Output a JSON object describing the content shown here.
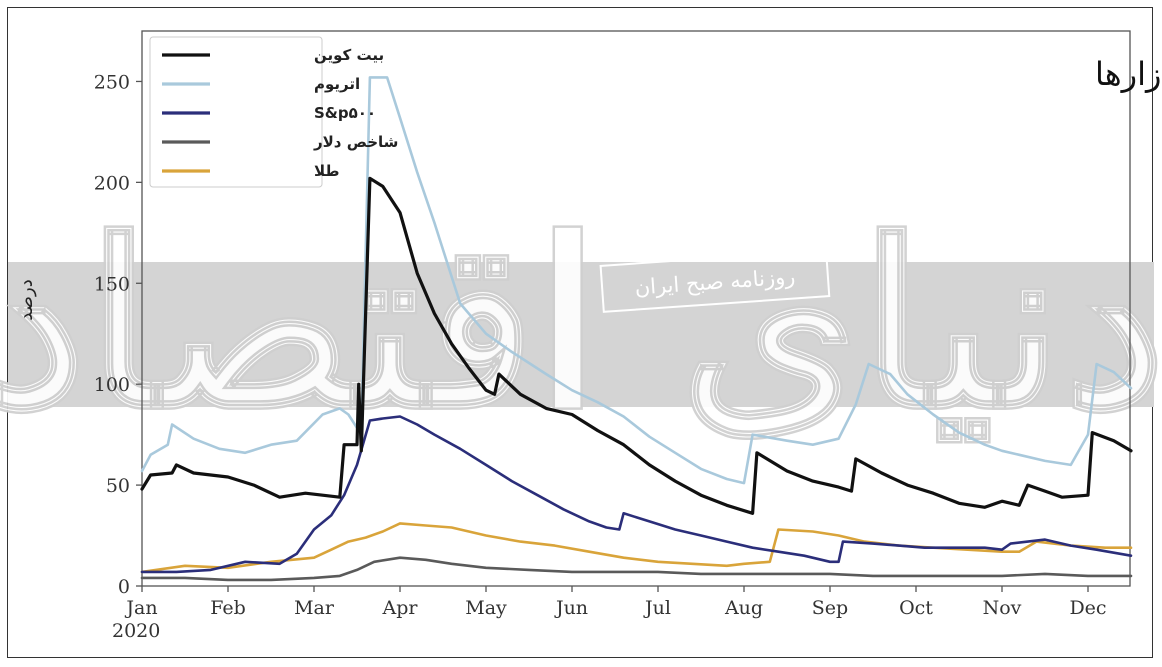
{
  "chart_data": {
    "type": "line",
    "title": "نوسانات سالانه بازارها",
    "ylabel": "درصد",
    "xlabel": "",
    "ylim": [
      0,
      275
    ],
    "xlim": [
      0,
      11.9
    ],
    "yticks": [
      0,
      50,
      100,
      150,
      200,
      250
    ],
    "xticks": [
      {
        "pos": 0,
        "label": "Jan"
      },
      {
        "pos": 1,
        "label": "Feb"
      },
      {
        "pos": 2,
        "label": "Mar"
      },
      {
        "pos": 3,
        "label": "Apr"
      },
      {
        "pos": 4,
        "label": "May"
      },
      {
        "pos": 5,
        "label": "Jun"
      },
      {
        "pos": 6,
        "label": "Jul"
      },
      {
        "pos": 7,
        "label": "Aug"
      },
      {
        "pos": 8,
        "label": "Sep"
      },
      {
        "pos": 9,
        "label": "Oct"
      },
      {
        "pos": 10,
        "label": "Nov"
      },
      {
        "pos": 11,
        "label": "Dec"
      }
    ],
    "year_label": "2020",
    "legend_position": "top-left",
    "grid": false,
    "series": [
      {
        "name": "بیت کوین",
        "color": "#111111",
        "points": [
          [
            0,
            48
          ],
          [
            0.1,
            55
          ],
          [
            0.35,
            56
          ],
          [
            0.4,
            60
          ],
          [
            0.6,
            56
          ],
          [
            1.0,
            54
          ],
          [
            1.3,
            50
          ],
          [
            1.6,
            44
          ],
          [
            1.9,
            46
          ],
          [
            2.1,
            45
          ],
          [
            2.3,
            44
          ],
          [
            2.35,
            70
          ],
          [
            2.5,
            70
          ],
          [
            2.52,
            100
          ],
          [
            2.55,
            67
          ],
          [
            2.65,
            202
          ],
          [
            2.8,
            198
          ],
          [
            3.0,
            185
          ],
          [
            3.2,
            155
          ],
          [
            3.4,
            135
          ],
          [
            3.6,
            120
          ],
          [
            3.8,
            108
          ],
          [
            4.0,
            97
          ],
          [
            4.1,
            95
          ],
          [
            4.15,
            105
          ],
          [
            4.4,
            95
          ],
          [
            4.7,
            88
          ],
          [
            5.0,
            85
          ],
          [
            5.3,
            77
          ],
          [
            5.6,
            70
          ],
          [
            5.9,
            60
          ],
          [
            6.2,
            52
          ],
          [
            6.5,
            45
          ],
          [
            6.8,
            40
          ],
          [
            7.1,
            36
          ],
          [
            7.15,
            66
          ],
          [
            7.5,
            57
          ],
          [
            7.8,
            52
          ],
          [
            8.1,
            49
          ],
          [
            8.25,
            47
          ],
          [
            8.3,
            63
          ],
          [
            8.6,
            56
          ],
          [
            8.9,
            50
          ],
          [
            9.2,
            46
          ],
          [
            9.5,
            41
          ],
          [
            9.8,
            39
          ],
          [
            10.0,
            42
          ],
          [
            10.2,
            40
          ],
          [
            10.3,
            50
          ],
          [
            10.5,
            47
          ],
          [
            10.7,
            44
          ],
          [
            11.0,
            45
          ],
          [
            11.05,
            76
          ],
          [
            11.3,
            72
          ],
          [
            11.5,
            67
          ]
        ]
      },
      {
        "name": "اتریوم",
        "color": "#a9c9dc",
        "points": [
          [
            0,
            57
          ],
          [
            0.1,
            65
          ],
          [
            0.3,
            70
          ],
          [
            0.35,
            80
          ],
          [
            0.6,
            73
          ],
          [
            0.9,
            68
          ],
          [
            1.2,
            66
          ],
          [
            1.5,
            70
          ],
          [
            1.8,
            72
          ],
          [
            2.1,
            85
          ],
          [
            2.3,
            88
          ],
          [
            2.4,
            85
          ],
          [
            2.55,
            75
          ],
          [
            2.65,
            252
          ],
          [
            2.85,
            252
          ],
          [
            3.0,
            232
          ],
          [
            3.2,
            205
          ],
          [
            3.4,
            180
          ],
          [
            3.7,
            140
          ],
          [
            4.0,
            125
          ],
          [
            4.3,
            116
          ],
          [
            4.7,
            105
          ],
          [
            5.0,
            97
          ],
          [
            5.3,
            91
          ],
          [
            5.6,
            84
          ],
          [
            5.9,
            74
          ],
          [
            6.2,
            66
          ],
          [
            6.5,
            58
          ],
          [
            6.8,
            53
          ],
          [
            7.0,
            51
          ],
          [
            7.1,
            75
          ],
          [
            7.5,
            72
          ],
          [
            7.8,
            70
          ],
          [
            8.1,
            73
          ],
          [
            8.3,
            90
          ],
          [
            8.45,
            110
          ],
          [
            8.7,
            105
          ],
          [
            8.9,
            95
          ],
          [
            9.2,
            85
          ],
          [
            9.5,
            76
          ],
          [
            9.8,
            70
          ],
          [
            10.0,
            67
          ],
          [
            10.2,
            65
          ],
          [
            10.5,
            62
          ],
          [
            10.8,
            60
          ],
          [
            11.0,
            75
          ],
          [
            11.1,
            110
          ],
          [
            11.3,
            106
          ],
          [
            11.5,
            98
          ]
        ]
      },
      {
        "name": "S&p۵۰۰",
        "color": "#2b2e7a",
        "points": [
          [
            0,
            7
          ],
          [
            0.4,
            7
          ],
          [
            0.8,
            8
          ],
          [
            1.2,
            12
          ],
          [
            1.6,
            11
          ],
          [
            1.8,
            16
          ],
          [
            2.0,
            28
          ],
          [
            2.2,
            35
          ],
          [
            2.35,
            45
          ],
          [
            2.5,
            60
          ],
          [
            2.65,
            82
          ],
          [
            2.8,
            83
          ],
          [
            3.0,
            84
          ],
          [
            3.2,
            80
          ],
          [
            3.4,
            75
          ],
          [
            3.7,
            68
          ],
          [
            4.0,
            60
          ],
          [
            4.3,
            52
          ],
          [
            4.6,
            45
          ],
          [
            4.9,
            38
          ],
          [
            5.2,
            32
          ],
          [
            5.4,
            29
          ],
          [
            5.55,
            28
          ],
          [
            5.6,
            36
          ],
          [
            5.9,
            32
          ],
          [
            6.2,
            28
          ],
          [
            6.5,
            25
          ],
          [
            6.8,
            22
          ],
          [
            7.1,
            19
          ],
          [
            7.4,
            17
          ],
          [
            7.7,
            15
          ],
          [
            8.0,
            12
          ],
          [
            8.1,
            12
          ],
          [
            8.15,
            22
          ],
          [
            8.5,
            21
          ],
          [
            8.8,
            20
          ],
          [
            9.1,
            19
          ],
          [
            9.5,
            19
          ],
          [
            9.8,
            19
          ],
          [
            10.0,
            18
          ],
          [
            10.1,
            21
          ],
          [
            10.3,
            22
          ],
          [
            10.5,
            23
          ],
          [
            10.8,
            20
          ],
          [
            11.1,
            18
          ],
          [
            11.5,
            15
          ]
        ]
      },
      {
        "name": "شاخص دلار",
        "color": "#5a5a5a",
        "points": [
          [
            0,
            4
          ],
          [
            0.5,
            4
          ],
          [
            1.0,
            3
          ],
          [
            1.5,
            3
          ],
          [
            2.0,
            4
          ],
          [
            2.3,
            5
          ],
          [
            2.5,
            8
          ],
          [
            2.7,
            12
          ],
          [
            3.0,
            14
          ],
          [
            3.3,
            13
          ],
          [
            3.6,
            11
          ],
          [
            4.0,
            9
          ],
          [
            4.5,
            8
          ],
          [
            5.0,
            7
          ],
          [
            5.5,
            7
          ],
          [
            6.0,
            7
          ],
          [
            6.5,
            6
          ],
          [
            7.0,
            6
          ],
          [
            7.5,
            6
          ],
          [
            8.0,
            6
          ],
          [
            8.5,
            5
          ],
          [
            9.0,
            5
          ],
          [
            9.5,
            5
          ],
          [
            10.0,
            5
          ],
          [
            10.5,
            6
          ],
          [
            11.0,
            5
          ],
          [
            11.5,
            5
          ]
        ]
      },
      {
        "name": "طلا",
        "color": "#d9a43a",
        "points": [
          [
            0,
            7
          ],
          [
            0.5,
            10
          ],
          [
            1.0,
            9
          ],
          [
            1.5,
            12
          ],
          [
            2.0,
            14
          ],
          [
            2.2,
            18
          ],
          [
            2.4,
            22
          ],
          [
            2.6,
            24
          ],
          [
            2.8,
            27
          ],
          [
            3.0,
            31
          ],
          [
            3.3,
            30
          ],
          [
            3.6,
            29
          ],
          [
            4.0,
            25
          ],
          [
            4.4,
            22
          ],
          [
            4.8,
            20
          ],
          [
            5.2,
            17
          ],
          [
            5.6,
            14
          ],
          [
            6.0,
            12
          ],
          [
            6.4,
            11
          ],
          [
            6.8,
            10
          ],
          [
            7.0,
            11
          ],
          [
            7.3,
            12
          ],
          [
            7.4,
            28
          ],
          [
            7.8,
            27
          ],
          [
            8.1,
            25
          ],
          [
            8.4,
            22
          ],
          [
            8.8,
            20
          ],
          [
            9.2,
            19
          ],
          [
            9.6,
            18
          ],
          [
            10.0,
            17
          ],
          [
            10.2,
            17
          ],
          [
            10.4,
            22
          ],
          [
            10.8,
            20
          ],
          [
            11.2,
            19
          ],
          [
            11.5,
            19
          ]
        ]
      }
    ]
  },
  "watermark": {
    "big_text": "دنیای اقتصاد",
    "small_text": "روزنامه صبح ایران"
  }
}
